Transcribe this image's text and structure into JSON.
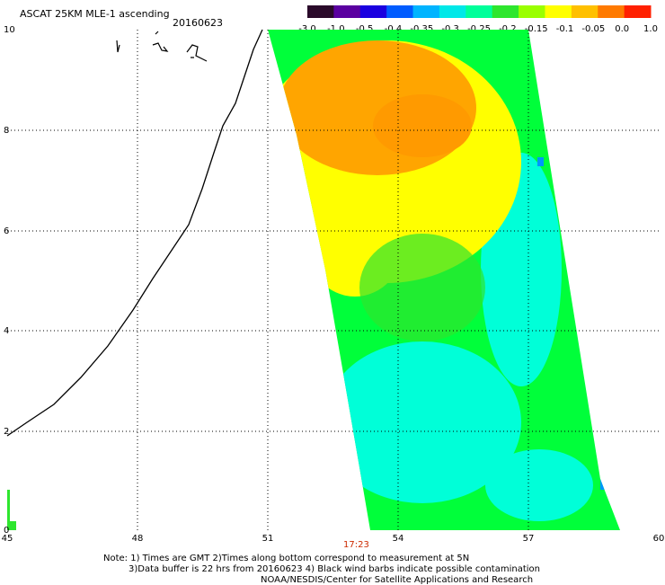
{
  "header": {
    "title": "ASCAT 25KM MLE-1 ascending",
    "date": "20160623"
  },
  "colorbar": {
    "labels": [
      "-3.0",
      "-1.0",
      "-0.5",
      "-0.4",
      "-0.35",
      "-0.3",
      "-0.25",
      "-0.2",
      "-0.15",
      "-0.1",
      "-0.05",
      "0.0",
      "1.0"
    ],
    "colors": [
      "#2a0a2a",
      "#5a00a0",
      "#1a00e0",
      "#005cff",
      "#00b4ff",
      "#00e8e8",
      "#00ff9a",
      "#2ee62e",
      "#9aff00",
      "#ffff00",
      "#ffc000",
      "#ff7a00",
      "#ff2000"
    ]
  },
  "map": {
    "x_ticks": [
      "45",
      "48",
      "51",
      "54",
      "57",
      "60"
    ],
    "y_ticks": [
      "10",
      "8",
      "6",
      "4",
      "2",
      "0"
    ],
    "time_label": "17:23",
    "swath_colors": {
      "orange": "#ffa500",
      "yellow": "#ffff00",
      "green": "#00ff3a",
      "cyan": "#00ffd8",
      "blue": "#0096ff"
    }
  },
  "notes": {
    "line1": "Note: 1) Times are GMT 2)Times along bottom correspond to measurement at 5N",
    "line2": "3)Data buffer is 22 hrs from 20160623 4) Black wind barbs indicate possible contamination",
    "line3": "NOAA/NESDIS/Center for Satellite Applications and Research"
  }
}
